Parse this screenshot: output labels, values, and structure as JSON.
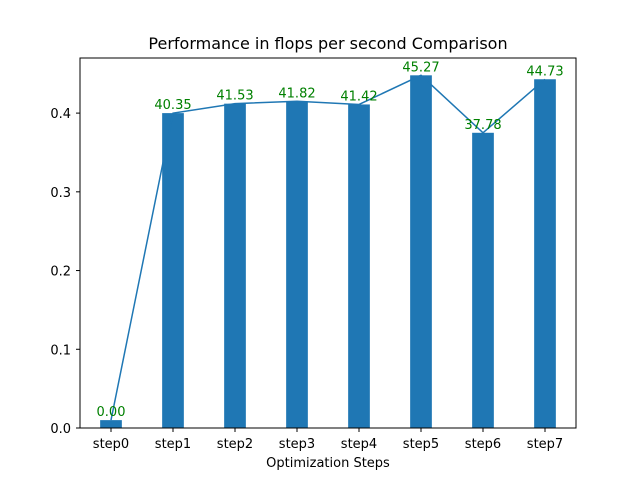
{
  "chart_data": {
    "type": "bar",
    "title": "Performance in flops per second Comparison",
    "xlabel": "Optimization Steps",
    "ylabel": "",
    "categories": [
      "step0",
      "step1",
      "step2",
      "step3",
      "step4",
      "step5",
      "step6",
      "step7"
    ],
    "values": [
      0.01,
      0.4,
      0.412,
      0.415,
      0.411,
      0.448,
      0.375,
      0.443
    ],
    "line_values": [
      0.01,
      0.4,
      0.412,
      0.415,
      0.411,
      0.448,
      0.375,
      0.443
    ],
    "data_labels": [
      "0.00",
      "40.35",
      "41.53",
      "41.82",
      "41.42",
      "45.27",
      "37.78",
      "44.73"
    ],
    "ylim": [
      0,
      0.47
    ],
    "yticks": [
      0.0,
      0.1,
      0.2,
      0.3,
      0.4
    ],
    "ytick_labels": [
      "0.0",
      "0.1",
      "0.2",
      "0.3",
      "0.4"
    ],
    "grid": false,
    "legend": "none",
    "colors": {
      "bar": "#1f77b4",
      "line": "#1f77b4",
      "data_label": "#008000",
      "axis": "#000000"
    }
  }
}
